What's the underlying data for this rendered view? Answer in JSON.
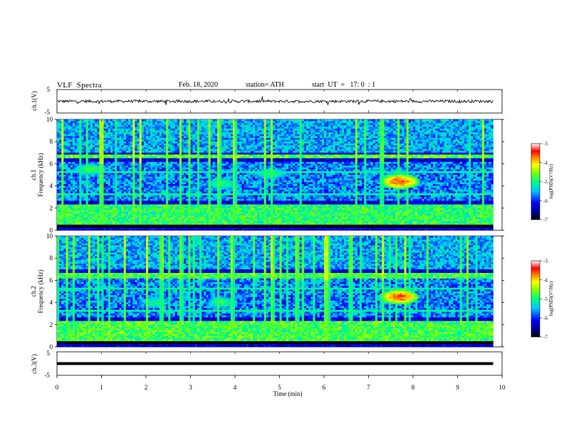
{
  "header": {
    "title": "VLF  Spectra",
    "date": "Feb. 18, 2020",
    "station": "station= ATH",
    "start": "start  UT  =   17: 0  : 1"
  },
  "colors": {
    "colormap": [
      "#000080",
      "#0000ff",
      "#00a0ff",
      "#00ffff",
      "#00ff80",
      "#80ff00",
      "#ffff00",
      "#ff8000",
      "#ff0000",
      "#ffffff"
    ]
  },
  "chart_data": [
    {
      "type": "line",
      "panel": "ch1-waveform",
      "ylabel": "ch.1(V)",
      "ylim": [
        -5,
        5
      ],
      "yticks": [
        "5",
        "-5"
      ],
      "xlim": [
        0,
        10
      ],
      "x_end": 9.8,
      "baseline": 0,
      "noise_amplitude": 0.6
    },
    {
      "type": "heatmap",
      "panel": "ch1-spectrogram",
      "ylabel": "Frequency (kHz)",
      "channel_label": "ch.1",
      "ylim": [
        0,
        10
      ],
      "yticks": [
        "0",
        "2",
        "4",
        "6",
        "8",
        "10"
      ],
      "xlim": [
        0,
        10
      ],
      "x_end": 9.8,
      "colorbar": {
        "label": "log(PSD)(V²/Hz)",
        "range": [
          -7,
          -3
        ],
        "ticks": [
          "-3",
          "-4",
          "-5",
          "-6",
          "-7"
        ]
      },
      "features": [
        {
          "t": 7.7,
          "f": 4.4,
          "level": -3.6,
          "label": ""
        },
        {
          "t": 0.75,
          "f": 5.5,
          "level": -4.8,
          "label": ""
        },
        {
          "t": 3.7,
          "f": 4.2,
          "level": -4.9,
          "label": ""
        },
        {
          "t": 4.8,
          "f": 5.1,
          "level": -4.9,
          "label": ""
        }
      ],
      "bands": [
        {
          "f_low": 0.4,
          "f_high": 2.4,
          "level": -4.9
        },
        {
          "f_low": 6.5,
          "f_high": 6.9,
          "level": -4.7
        }
      ]
    },
    {
      "type": "heatmap",
      "panel": "ch2-spectrogram",
      "ylabel": "Frequency (kHz)",
      "channel_label": "ch.2",
      "ylim": [
        0,
        10
      ],
      "yticks": [
        "0",
        "2",
        "4",
        "6",
        "8",
        "10"
      ],
      "xlim": [
        0,
        10
      ],
      "x_end": 9.8,
      "colorbar": {
        "label": "log(PSD)(V²/Hz)",
        "range": [
          -7,
          -3
        ],
        "ticks": [
          "-3",
          "-4",
          "-5",
          "-6",
          "-7"
        ]
      },
      "features": [
        {
          "t": 7.7,
          "f": 4.5,
          "level": -3.6,
          "label": ""
        },
        {
          "t": 3.7,
          "f": 4.0,
          "level": -4.9,
          "label": ""
        },
        {
          "t": 2.2,
          "f": 4.0,
          "level": -5.0,
          "label": ""
        }
      ],
      "bands": [
        {
          "f_low": 0.5,
          "f_high": 2.4,
          "level": -4.8
        },
        {
          "f_low": 6.1,
          "f_high": 6.6,
          "level": -4.8
        }
      ]
    },
    {
      "type": "line",
      "panel": "ch3-waveform",
      "ylabel": "ch.3(V)",
      "ylim": [
        -5,
        5
      ],
      "yticks": [
        "5",
        "-5"
      ],
      "xlim": [
        0,
        10
      ],
      "x_end": 9.8,
      "baseline": 0,
      "noise_amplitude": 0.0
    }
  ],
  "xaxis": {
    "label": "Time  (min)",
    "ticks": [
      "0",
      "1",
      "2",
      "3",
      "4",
      "5",
      "6",
      "7",
      "8",
      "9",
      "10"
    ]
  }
}
